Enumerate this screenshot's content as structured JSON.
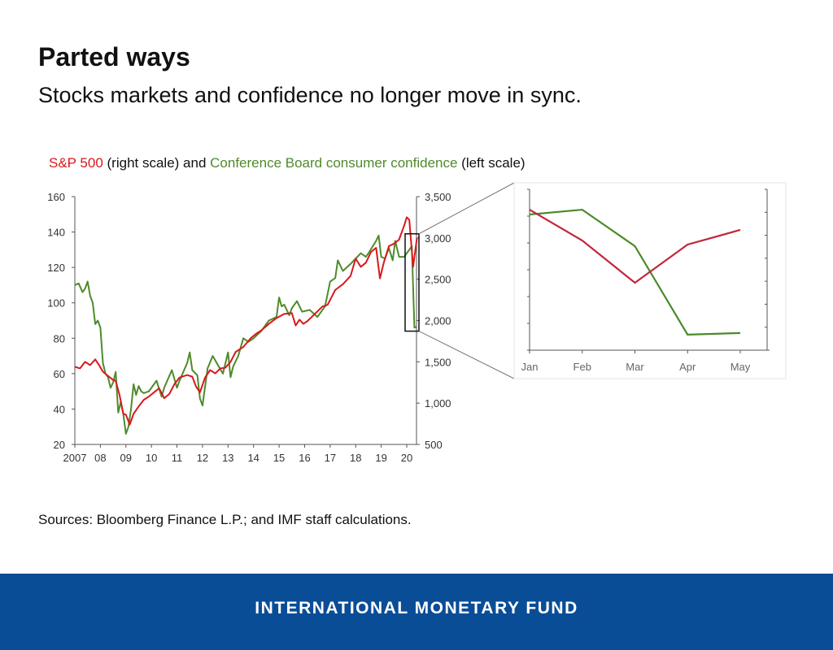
{
  "title": "Parted ways",
  "subtitle": "Stocks markets and confidence no longer move in sync.",
  "source": "Sources: Bloomberg Finance L.P.; and IMF staff calculations.",
  "footer": "INTERNATIONAL MONETARY FUND",
  "colors": {
    "sp500": "#d7191c",
    "confidence": "#4f8a2b",
    "inset_sp500": "#c0283c",
    "inset_confidence": "#4a8a2a",
    "footer": "#0a4d97"
  },
  "chart_data": [
    {
      "type": "line",
      "title_parts": [
        {
          "text": "S&P 500",
          "color": "sp500"
        },
        {
          "text": " (right scale) and "
        },
        {
          "text": "Conference Board consumer confidence",
          "color": "confidence"
        },
        {
          "text": " (left scale)"
        }
      ],
      "x_ticks": [
        "2007",
        "08",
        "09",
        "10",
        "11",
        "12",
        "13",
        "14",
        "15",
        "16",
        "17",
        "18",
        "19",
        "20"
      ],
      "xlim": [
        2007,
        2020.5
      ],
      "left_axis": {
        "ylim": [
          20,
          160
        ],
        "ticks": [
          "20",
          "40",
          "60",
          "80",
          "100",
          "120",
          "140",
          "160"
        ]
      },
      "right_axis": {
        "ylim": [
          500,
          3500
        ],
        "ticks": [
          "500",
          "1,000",
          "1,500",
          "2,000",
          "2,500",
          "3,000",
          "3,500"
        ]
      },
      "series": [
        {
          "name": "Conference Board consumer confidence",
          "axis": "left",
          "color": "confidence",
          "x": [
            2007.0,
            2007.15,
            2007.3,
            2007.4,
            2007.5,
            2007.6,
            2007.7,
            2007.8,
            2007.9,
            2008.0,
            2008.1,
            2008.2,
            2008.3,
            2008.4,
            2008.5,
            2008.6,
            2008.7,
            2008.8,
            2008.9,
            2009.0,
            2009.1,
            2009.2,
            2009.3,
            2009.4,
            2009.5,
            2009.6,
            2009.7,
            2009.9,
            2010.2,
            2010.4,
            2010.5,
            2010.8,
            2011.0,
            2011.1,
            2011.4,
            2011.5,
            2011.6,
            2011.8,
            2011.9,
            2012.0,
            2012.2,
            2012.4,
            2012.6,
            2012.8,
            2013.0,
            2013.1,
            2013.2,
            2013.4,
            2013.6,
            2013.8,
            2014.0,
            2014.3,
            2014.6,
            2014.9,
            2015.0,
            2015.1,
            2015.2,
            2015.4,
            2015.5,
            2015.7,
            2015.9,
            2016.2,
            2016.5,
            2016.8,
            2017.0,
            2017.2,
            2017.3,
            2017.5,
            2017.8,
            2018.0,
            2018.2,
            2018.4,
            2018.5,
            2018.8,
            2018.9,
            2019.0,
            2019.15,
            2019.3,
            2019.45,
            2019.55,
            2019.7,
            2019.9,
            2020.1,
            2020.2,
            2020.3,
            2020.4
          ],
          "y": [
            110,
            111,
            106,
            108,
            112,
            104,
            100,
            88,
            90,
            86,
            66,
            60,
            58,
            52,
            55,
            61,
            38,
            44,
            37,
            26,
            30,
            40,
            54,
            48,
            53,
            50,
            49,
            50,
            56,
            47,
            52,
            62,
            52,
            56,
            66,
            72,
            62,
            59,
            46,
            42,
            63,
            70,
            65,
            60,
            72,
            58,
            64,
            70,
            80,
            78,
            80,
            84,
            90,
            92,
            103,
            98,
            99,
            93,
            97,
            101,
            95,
            96,
            92,
            98,
            112,
            114,
            124,
            118,
            122,
            125,
            128,
            126,
            128,
            135,
            138,
            126,
            125,
            131,
            124,
            135,
            126,
            126,
            130,
            132,
            86,
            86.5
          ]
        },
        {
          "name": "S&P 500",
          "axis": "right",
          "color": "sp500",
          "x": [
            2007.0,
            2007.2,
            2007.4,
            2007.6,
            2007.8,
            2007.95,
            2008.1,
            2008.3,
            2008.5,
            2008.6,
            2008.75,
            2008.9,
            2009.0,
            2009.15,
            2009.3,
            2009.5,
            2009.7,
            2009.9,
            2010.1,
            2010.3,
            2010.5,
            2010.7,
            2010.9,
            2011.1,
            2011.4,
            2011.6,
            2011.75,
            2011.9,
            2012.1,
            2012.3,
            2012.5,
            2012.7,
            2012.9,
            2013.1,
            2013.3,
            2013.6,
            2013.9,
            2014.1,
            2014.3,
            2014.6,
            2014.9,
            2015.2,
            2015.5,
            2015.65,
            2015.8,
            2015.95,
            2016.1,
            2016.4,
            2016.7,
            2016.9,
            2017.2,
            2017.5,
            2017.8,
            2018.0,
            2018.2,
            2018.4,
            2018.6,
            2018.8,
            2018.95,
            2019.1,
            2019.3,
            2019.5,
            2019.7,
            2019.9,
            2020.0,
            2020.1,
            2020.25,
            2020.4
          ],
          "y": [
            1440,
            1420,
            1500,
            1460,
            1530,
            1460,
            1380,
            1330,
            1280,
            1270,
            1100,
            870,
            860,
            740,
            870,
            960,
            1040,
            1080,
            1130,
            1180,
            1060,
            1110,
            1230,
            1310,
            1340,
            1320,
            1200,
            1130,
            1310,
            1400,
            1360,
            1420,
            1430,
            1500,
            1620,
            1680,
            1790,
            1840,
            1880,
            1960,
            2030,
            2080,
            2090,
            1940,
            2010,
            1960,
            1990,
            2080,
            2170,
            2190,
            2370,
            2440,
            2540,
            2750,
            2650,
            2700,
            2830,
            2880,
            2510,
            2700,
            2900,
            2930,
            2980,
            3150,
            3250,
            3220,
            2650,
            3000
          ]
        }
      ],
      "zoom_box": {
        "x": [
          2020.0,
          2020.5
        ],
        "y_left": [
          84,
          139
        ]
      }
    },
    {
      "type": "line",
      "x_ticks": [
        "Jan",
        "Feb",
        "Mar",
        "Apr",
        "May"
      ],
      "left_axis": {
        "ylim": [
          80,
          140
        ]
      },
      "right_axis": {
        "ylim": [
          2200,
          3400
        ]
      },
      "series": [
        {
          "name": "Conference Board consumer confidence",
          "axis": "left",
          "color": "inset_confidence",
          "values": [
            130.6,
            132.4,
            118.8,
            85.8,
            86.4
          ]
        },
        {
          "name": "S&P 500",
          "axis": "right",
          "color": "inset_sp500",
          "values": [
            3248,
            3018,
            2703,
            2988,
            3097
          ]
        }
      ]
    }
  ]
}
